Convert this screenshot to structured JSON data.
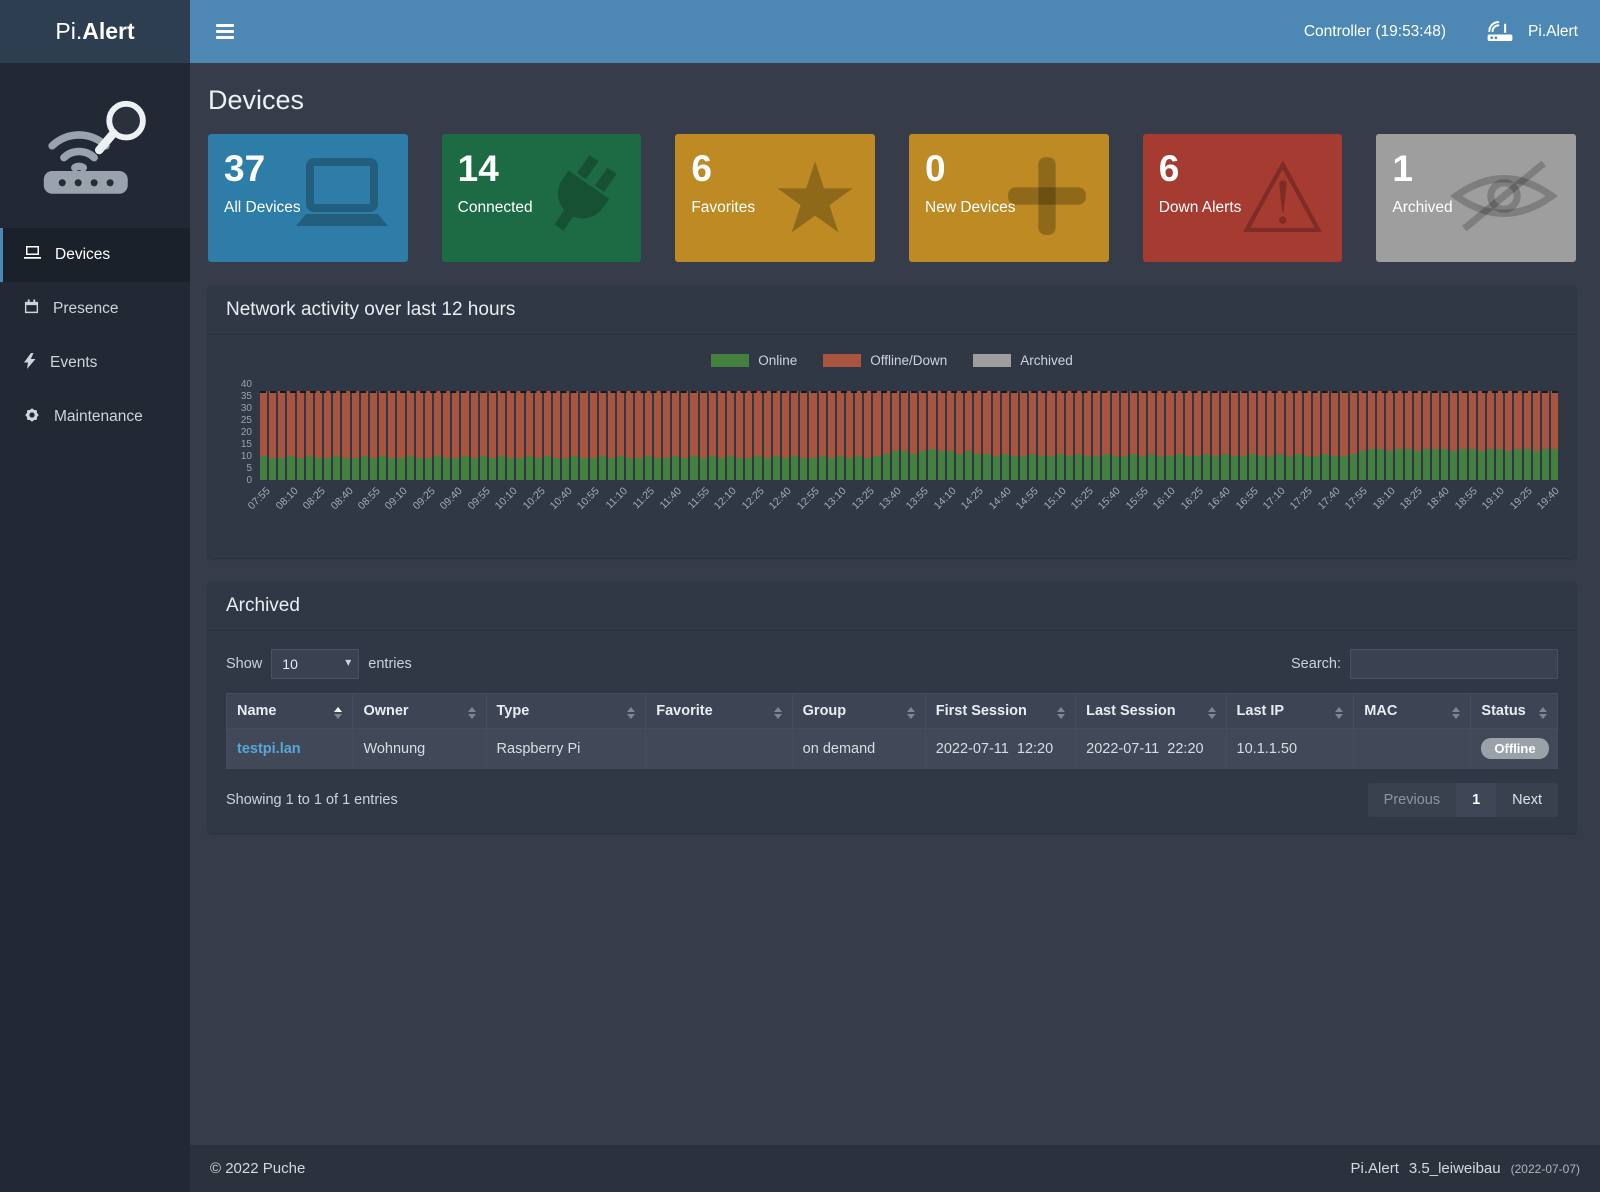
{
  "colors": {
    "topbar": "#4d87b4",
    "topbar_logo_bg": "#2c3e50",
    "sidebar_bg": "#222834",
    "content_bg": "#363c49",
    "panel_bg": "#313845",
    "link": "#57a6d8",
    "status_badge": "#9aa1a9"
  },
  "header": {
    "logo_light": "Pi.",
    "logo_bold": "Alert",
    "controller": "Controller (19:53:48)",
    "brand": "Pi.Alert"
  },
  "sidebar": {
    "items": [
      {
        "label": "Devices",
        "active": true
      },
      {
        "label": "Presence",
        "active": false
      },
      {
        "label": "Events",
        "active": false
      },
      {
        "label": "Maintenance",
        "active": false
      }
    ]
  },
  "page": {
    "title": "Devices"
  },
  "cards": [
    {
      "value": "37",
      "label": "All Devices",
      "color": "#2d7da8",
      "icon": "laptop-icon"
    },
    {
      "value": "14",
      "label": "Connected",
      "color": "#1d6b45",
      "icon": "plug-icon"
    },
    {
      "value": "6",
      "label": "Favorites",
      "color": "#bd8a23",
      "icon": "star-icon"
    },
    {
      "value": "0",
      "label": "New Devices",
      "color": "#bd8a23",
      "icon": "plus-icon"
    },
    {
      "value": "6",
      "label": "Down Alerts",
      "color": "#a63b31",
      "icon": "warning-icon"
    },
    {
      "value": "1",
      "label": "Archived",
      "color": "#9e9e9e",
      "icon": "eye-slash-icon"
    }
  ],
  "activity": {
    "title": "Network activity over last 12 hours",
    "legend": [
      {
        "label": "Online",
        "color": "#44803f"
      },
      {
        "label": "Offline/Down",
        "color": "#a9543e"
      },
      {
        "label": "Archived",
        "color": "#9e9e9e"
      }
    ],
    "chart_data": {
      "type": "bar",
      "stacked": true,
      "x_start": "07:55",
      "x_end": "19:40",
      "x_interval_minutes": 5,
      "x_labels_every_n_bars": 3,
      "x_tick_labels": [
        "07:55",
        "08:10",
        "08:25",
        "08:40",
        "08:55",
        "09:10",
        "09:25",
        "09:40",
        "09:55",
        "10:10",
        "10:25",
        "10:40",
        "10:55",
        "11:10",
        "11:25",
        "11:40",
        "11:55",
        "12:10",
        "12:25",
        "12:40",
        "12:55",
        "13:10",
        "13:25",
        "13:40",
        "13:55",
        "14:10",
        "14:25",
        "14:40",
        "14:55",
        "15:10",
        "15:25",
        "15:40",
        "15:55",
        "16:10",
        "16:25",
        "16:40",
        "16:55",
        "17:10",
        "17:25",
        "17:40",
        "17:55",
        "18:10",
        "18:25",
        "18:40",
        "18:55",
        "19:10",
        "19:25",
        "19:40"
      ],
      "series": [
        {
          "name": "Online",
          "color": "#44803f",
          "values": [
            10,
            9,
            9,
            10,
            9,
            10,
            9,
            9,
            10,
            9,
            9,
            10,
            9,
            10,
            9,
            9,
            10,
            9,
            9,
            10,
            9,
            9,
            10,
            9,
            10,
            9,
            10,
            9,
            9,
            10,
            9,
            10,
            9,
            9,
            10,
            9,
            9,
            10,
            9,
            10,
            9,
            9,
            10,
            9,
            9,
            10,
            9,
            10,
            9,
            10,
            9,
            10,
            9,
            9,
            10,
            9,
            10,
            9,
            10,
            9,
            9,
            10,
            9,
            10,
            9,
            10,
            9,
            10,
            11,
            12,
            12,
            11,
            12,
            13,
            12,
            12,
            11,
            12,
            11,
            11,
            10,
            11,
            10,
            10,
            11,
            10,
            10,
            11,
            10,
            11,
            10,
            10,
            11,
            10,
            10,
            11,
            10,
            11,
            10,
            10,
            11,
            10,
            10,
            11,
            10,
            11,
            10,
            10,
            11,
            10,
            10,
            11,
            10,
            11,
            10,
            10,
            11,
            10,
            10,
            11,
            12,
            13,
            13,
            12,
            13,
            13,
            12,
            13,
            13,
            13,
            12,
            13,
            13,
            12,
            13,
            13,
            12,
            13,
            13,
            12,
            13,
            13
          ]
        },
        {
          "name": "Offline/Down",
          "color": "#a9543e",
          "values": [
            27,
            28,
            28,
            27,
            28,
            27,
            28,
            28,
            27,
            28,
            28,
            27,
            28,
            27,
            28,
            28,
            27,
            28,
            28,
            27,
            28,
            28,
            27,
            28,
            27,
            28,
            27,
            28,
            28,
            27,
            28,
            27,
            28,
            28,
            27,
            28,
            28,
            27,
            28,
            27,
            28,
            28,
            27,
            28,
            28,
            27,
            28,
            27,
            28,
            27,
            28,
            27,
            28,
            28,
            27,
            28,
            27,
            28,
            27,
            28,
            28,
            27,
            28,
            27,
            28,
            27,
            28,
            27,
            26,
            25,
            25,
            26,
            25,
            24,
            25,
            25,
            26,
            25,
            26,
            26,
            27,
            26,
            27,
            27,
            26,
            27,
            27,
            26,
            27,
            26,
            27,
            27,
            26,
            27,
            27,
            26,
            27,
            26,
            27,
            27,
            26,
            27,
            27,
            26,
            27,
            26,
            27,
            27,
            26,
            27,
            27,
            26,
            27,
            26,
            27,
            27,
            26,
            27,
            27,
            26,
            25,
            24,
            24,
            25,
            24,
            24,
            25,
            24,
            24,
            24,
            25,
            24,
            24,
            25,
            24,
            24,
            25,
            24,
            24,
            25,
            24,
            24
          ]
        }
      ],
      "ylim": [
        0,
        40
      ],
      "y_ticks": [
        0,
        5,
        10,
        15,
        20,
        25,
        30,
        35,
        40
      ],
      "total_devices_line": 37,
      "grid": false,
      "legend_position": "top"
    }
  },
  "archived": {
    "title": "Archived",
    "show_label": "Show",
    "page_length": "10",
    "entries_label": "entries",
    "search_label": "Search:",
    "columns": [
      "Name",
      "Owner",
      "Type",
      "Favorite",
      "Group",
      "First Session",
      "Last Session",
      "Last IP",
      "MAC",
      "Status"
    ],
    "rows": [
      {
        "name": "testpi.lan",
        "owner": "Wohnung",
        "type": "Raspberry Pi",
        "favorite": "",
        "group": "on demand",
        "first_session": "2022-07-11  12:20",
        "last_session": "2022-07-11  22:20",
        "last_ip": "10.1.1.50",
        "mac": "",
        "status": "Offline"
      }
    ],
    "info": "Showing 1 to 1 of 1 entries",
    "pagination": {
      "previous": "Previous",
      "page": "1",
      "next": "Next"
    }
  },
  "footer": {
    "copyright": "© 2022 Puche",
    "brand": "Pi.Alert",
    "version": "3.5_leiweibau",
    "date": "(2022-07-07)"
  }
}
